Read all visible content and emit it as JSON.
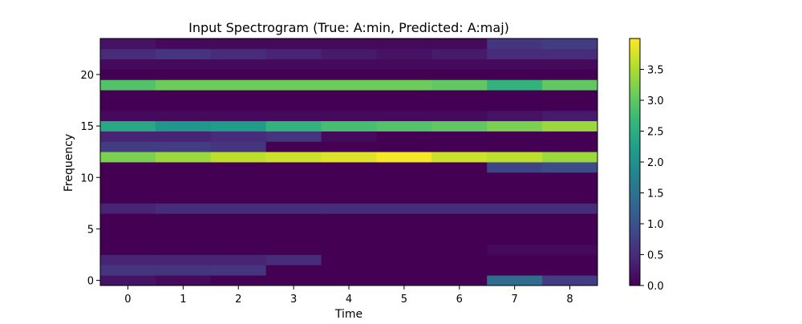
{
  "chart_data": {
    "type": "heatmap",
    "title": "Input Spectrogram (True: A:min, Predicted: A:maj)",
    "xlabel": "Time",
    "ylabel": "Frequency",
    "x": [
      0,
      1,
      2,
      3,
      4,
      5,
      6,
      7,
      8
    ],
    "y": [
      0,
      1,
      2,
      3,
      4,
      5,
      6,
      7,
      8,
      9,
      10,
      11,
      12,
      13,
      14,
      15,
      16,
      17,
      18,
      19,
      20,
      21,
      22,
      23
    ],
    "xlim": [
      -0.5,
      8.5
    ],
    "ylim": [
      -0.5,
      23.5
    ],
    "xticks": [
      0,
      1,
      2,
      3,
      4,
      5,
      6,
      7,
      8
    ],
    "yticks": [
      0,
      5,
      10,
      15,
      20
    ],
    "colormap": "viridis",
    "colorbar": {
      "min": 0.0,
      "max": 4.0,
      "ticks": [
        0.0,
        0.5,
        1.0,
        1.5,
        2.0,
        2.5,
        3.0,
        3.5
      ],
      "tick_labels": [
        "0.0",
        "0.5",
        "1.0",
        "1.5",
        "2.0",
        "2.5",
        "3.0",
        "3.5"
      ]
    },
    "values": [
      [
        0.2,
        0.1,
        0.0,
        0.0,
        0.0,
        0.0,
        0.0,
        1.4,
        0.7
      ],
      [
        0.6,
        0.6,
        0.6,
        0.0,
        0.0,
        0.0,
        0.0,
        0.0,
        0.0
      ],
      [
        0.4,
        0.4,
        0.4,
        0.5,
        0.0,
        0.0,
        0.0,
        0.0,
        0.0
      ],
      [
        0.0,
        0.0,
        0.0,
        0.0,
        0.0,
        0.0,
        0.0,
        0.1,
        0.1
      ],
      [
        0.0,
        0.0,
        0.0,
        0.0,
        0.0,
        0.0,
        0.0,
        0.0,
        0.0
      ],
      [
        0.0,
        0.0,
        0.0,
        0.0,
        0.0,
        0.0,
        0.0,
        0.0,
        0.0
      ],
      [
        0.0,
        0.0,
        0.0,
        0.0,
        0.0,
        0.0,
        0.0,
        0.0,
        0.0
      ],
      [
        0.4,
        0.5,
        0.5,
        0.5,
        0.5,
        0.5,
        0.5,
        0.5,
        0.5
      ],
      [
        0.0,
        0.0,
        0.0,
        0.0,
        0.0,
        0.0,
        0.0,
        0.0,
        0.0
      ],
      [
        0.0,
        0.0,
        0.0,
        0.0,
        0.0,
        0.0,
        0.0,
        0.0,
        0.0
      ],
      [
        0.0,
        0.0,
        0.0,
        0.0,
        0.0,
        0.0,
        0.0,
        0.0,
        0.0
      ],
      [
        0.0,
        0.0,
        0.0,
        0.0,
        0.0,
        0.0,
        0.0,
        0.8,
        0.9
      ],
      [
        3.2,
        3.4,
        3.6,
        3.7,
        3.8,
        3.95,
        3.7,
        3.6,
        3.4
      ],
      [
        0.7,
        0.7,
        0.6,
        0.0,
        0.0,
        0.0,
        0.0,
        0.0,
        0.0
      ],
      [
        0.4,
        0.4,
        0.5,
        0.6,
        0.1,
        0.0,
        0.0,
        0.0,
        0.0
      ],
      [
        2.4,
        2.1,
        2.2,
        2.6,
        2.8,
        2.9,
        3.0,
        3.2,
        3.4
      ],
      [
        0.1,
        0.1,
        0.1,
        0.1,
        0.1,
        0.1,
        0.1,
        0.2,
        0.3
      ],
      [
        0.0,
        0.0,
        0.0,
        0.0,
        0.0,
        0.0,
        0.0,
        0.0,
        0.0
      ],
      [
        0.0,
        0.0,
        0.0,
        0.0,
        0.0,
        0.0,
        0.0,
        0.0,
        0.0
      ],
      [
        2.9,
        3.1,
        3.1,
        3.1,
        3.1,
        3.1,
        3.0,
        2.6,
        3.0
      ],
      [
        0.0,
        0.0,
        0.0,
        0.0,
        0.0,
        0.0,
        0.0,
        0.0,
        0.0
      ],
      [
        0.1,
        0.1,
        0.1,
        0.1,
        0.1,
        0.1,
        0.1,
        0.1,
        0.1
      ],
      [
        0.5,
        0.6,
        0.5,
        0.4,
        0.3,
        0.2,
        0.3,
        0.5,
        0.5
      ],
      [
        0.2,
        0.1,
        0.1,
        0.1,
        0.1,
        0.1,
        0.1,
        0.6,
        0.7
      ]
    ]
  }
}
